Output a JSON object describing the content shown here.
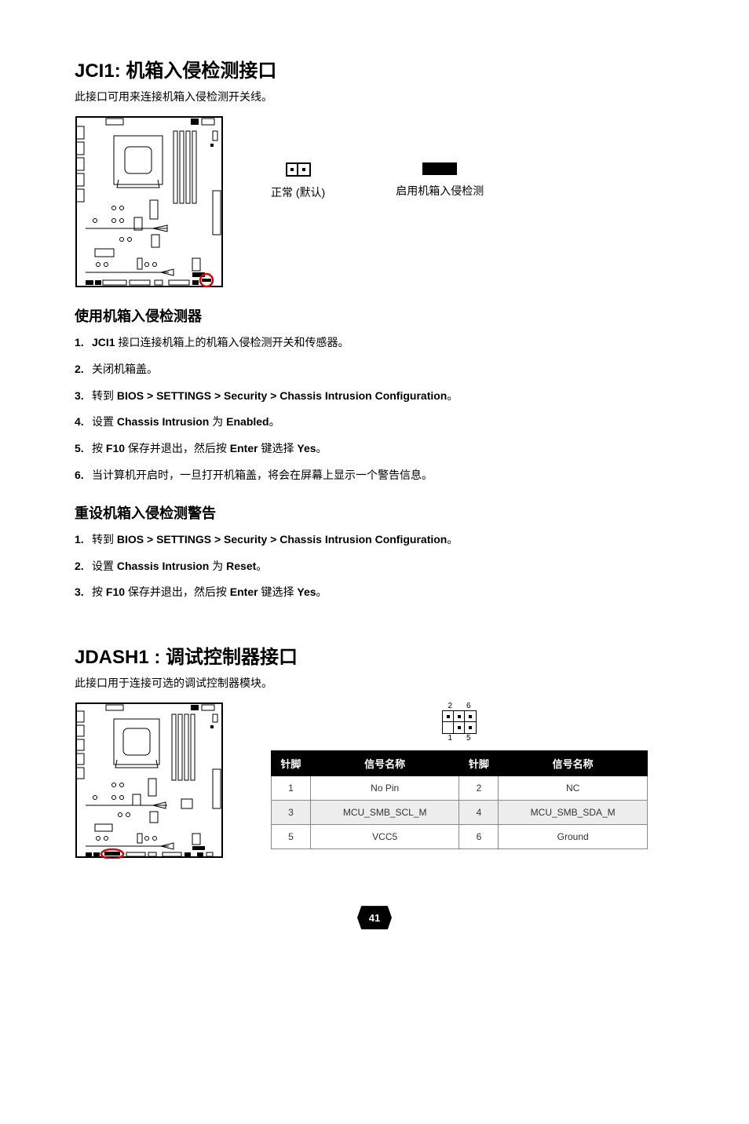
{
  "jci1": {
    "title": "JCI1: 机箱入侵检测接口",
    "subtitle": "此接口可用来连接机箱入侵检测开关线。",
    "jumper_normal": "正常 (默认)",
    "jumper_enabled": "启用机箱入侵检测",
    "use_heading": "使用机箱入侵检测器",
    "use_steps": [
      "<strong>JCI1</strong> 接口连接机箱上的机箱入侵检测开关和传感器。",
      "关闭机箱盖。",
      "转到 <strong>BIOS &gt; SETTINGS &gt; Security &gt; Chassis Intrusion Configuration</strong>。",
      "设置 <strong>Chassis Intrusion</strong> 为 <strong>Enabled</strong>。",
      "按 <strong>F10</strong> 保存并退出，然后按 <strong>Enter</strong> 键选择 <strong>Yes</strong>。",
      "当计算机开启时，一旦打开机箱盖，将会在屏幕上显示一个警告信息。"
    ],
    "reset_heading": "重设机箱入侵检测警告",
    "reset_steps": [
      "转到 <strong>BIOS &gt; SETTINGS &gt; Security &gt; Chassis Intrusion Configuration</strong>。",
      "设置 <strong>Chassis Intrusion</strong> 为 <strong>Reset</strong>。",
      "按 <strong>F10</strong> 保存并退出，然后按 <strong>Enter</strong> 键选择 <strong>Yes</strong>。"
    ]
  },
  "jdash1": {
    "title": "JDASH1 : 调试控制器接口",
    "subtitle": "此接口用于连接可选的调试控制器模块。",
    "pin_labels_top": [
      "2",
      "6"
    ],
    "pin_labels_bot": [
      "1",
      "5"
    ],
    "table": {
      "headers": [
        "针脚",
        "信号名称",
        "针脚",
        "信号名称"
      ],
      "rows": [
        {
          "shaded": false,
          "cells": [
            "1",
            "No Pin",
            "2",
            "NC"
          ]
        },
        {
          "shaded": true,
          "cells": [
            "3",
            "MCU_SMB_SCL_M",
            "4",
            "MCU_SMB_SDA_M"
          ]
        },
        {
          "shaded": false,
          "cells": [
            "5",
            "VCC5",
            "6",
            "Ground"
          ]
        }
      ]
    }
  },
  "page_number": "41"
}
